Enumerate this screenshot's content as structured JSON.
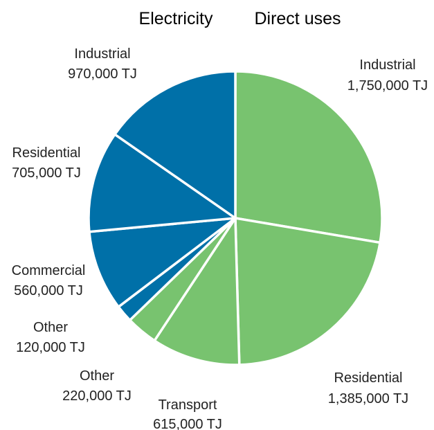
{
  "chart_data": {
    "type": "pie",
    "groups": [
      {
        "name": "Electricity",
        "color": "#0070a8"
      },
      {
        "name": "Direct uses",
        "color": "#78c36f"
      }
    ],
    "slices": [
      {
        "group": "Direct uses",
        "label": "Industrial",
        "value": 1750000,
        "value_text": "1,750,000 TJ"
      },
      {
        "group": "Direct uses",
        "label": "Residential",
        "value": 1385000,
        "value_text": "1,385,000 TJ"
      },
      {
        "group": "Direct uses",
        "label": "Transport",
        "value": 615000,
        "value_text": "615,000 TJ"
      },
      {
        "group": "Direct uses",
        "label": "Other",
        "value": 220000,
        "value_text": "220,000 TJ"
      },
      {
        "group": "Electricity",
        "label": "Other",
        "value": 120000,
        "value_text": "120,000 TJ"
      },
      {
        "group": "Electricity",
        "label": "Commercial",
        "value": 560000,
        "value_text": "560,000 TJ"
      },
      {
        "group": "Electricity",
        "label": "Residential",
        "value": 705000,
        "value_text": "705,000 TJ"
      },
      {
        "group": "Electricity",
        "label": "Industrial",
        "value": 970000,
        "value_text": "970,000 TJ"
      }
    ],
    "start_angle_deg": 0,
    "direction": "clockwise"
  }
}
